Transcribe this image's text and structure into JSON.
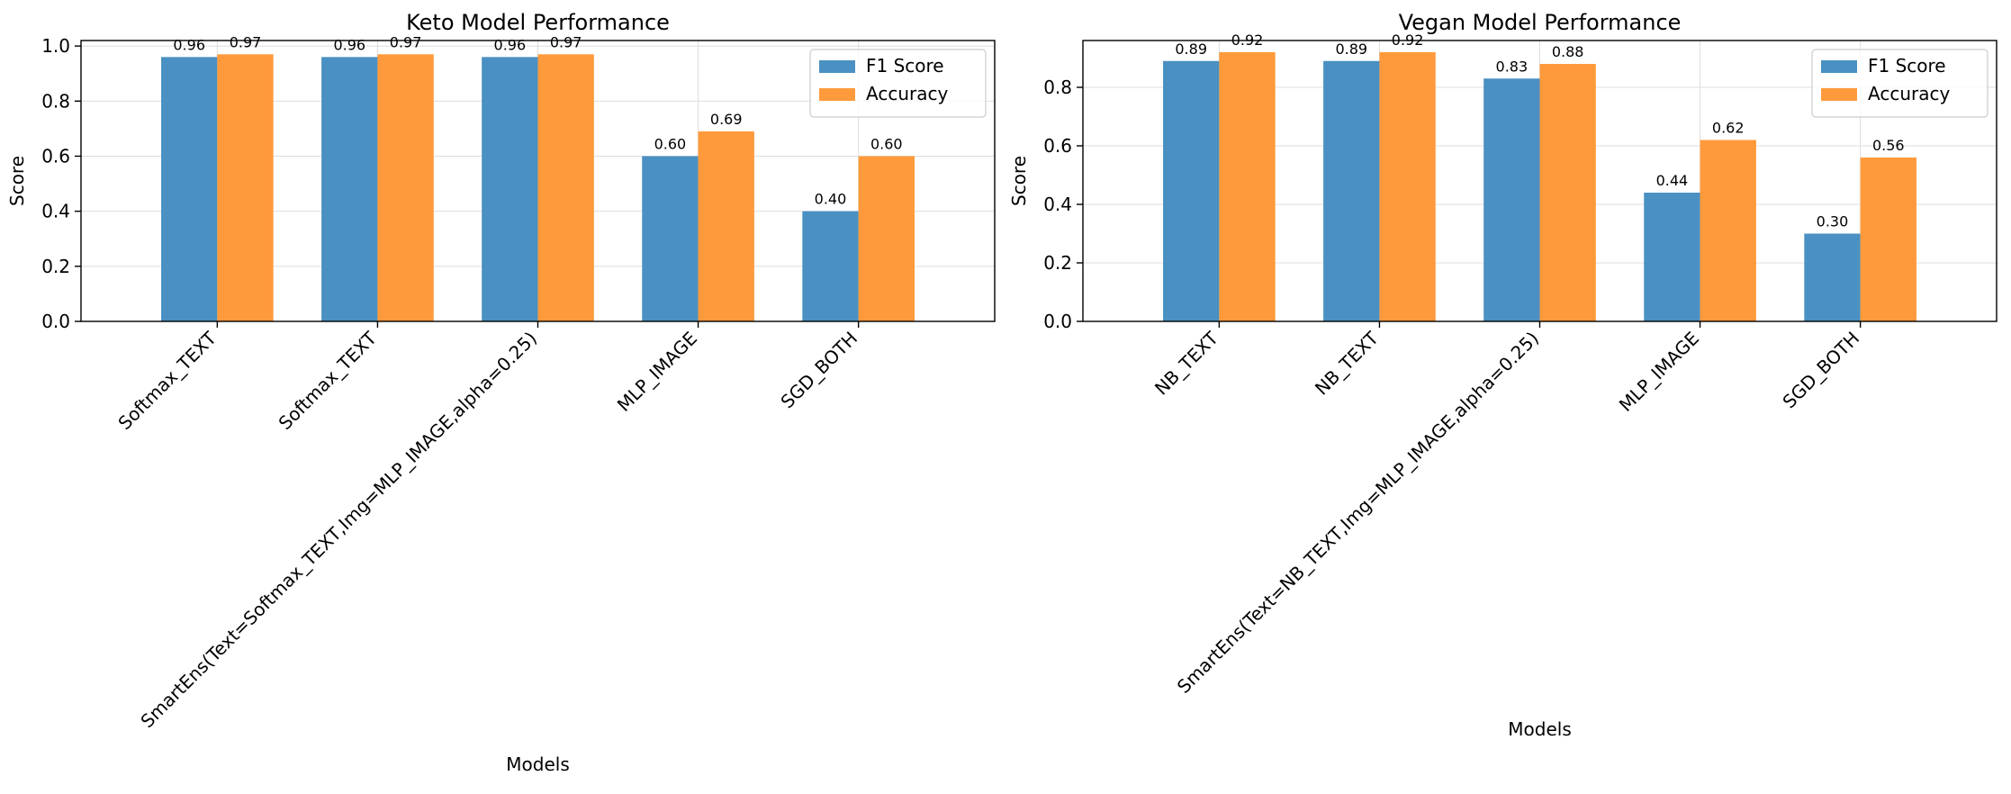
{
  "chart_data": [
    {
      "type": "bar",
      "title": "Keto Model Performance",
      "xlabel": "Models",
      "ylabel": "Score",
      "ylim": [
        0,
        1.02
      ],
      "yticks": [
        0.0,
        0.2,
        0.4,
        0.6,
        0.8,
        1.0
      ],
      "grid": true,
      "legend_position": "top-right",
      "categories": [
        "Softmax_TEXT",
        "Softmax_TEXT",
        "SmartEns(Text=Softmax_TEXT,Img=MLP_IMAGE,alpha=0.25)",
        "MLP_IMAGE",
        "SGD_BOTH"
      ],
      "series": [
        {
          "name": "F1 Score",
          "color": "#4a90c2",
          "values": [
            0.96,
            0.96,
            0.96,
            0.6,
            0.4
          ],
          "labels": [
            "0.96",
            "0.96",
            "0.96",
            "0.60",
            "0.40"
          ]
        },
        {
          "name": "Accuracy",
          "color": "#ff9a3c",
          "values": [
            0.97,
            0.97,
            0.97,
            0.69,
            0.6
          ],
          "labels": [
            "0.97",
            "0.97",
            "0.97",
            "0.69",
            "0.60"
          ]
        }
      ]
    },
    {
      "type": "bar",
      "title": "Vegan Model Performance",
      "xlabel": "Models",
      "ylabel": "Score",
      "ylim": [
        0,
        0.96
      ],
      "yticks": [
        0.0,
        0.2,
        0.4,
        0.6,
        0.8
      ],
      "grid": true,
      "legend_position": "top-right",
      "categories": [
        "NB_TEXT",
        "NB_TEXT",
        "SmartEns(Text=NB_TEXT,Img=MLP_IMAGE,alpha=0.25)",
        "MLP_IMAGE",
        "SGD_BOTH"
      ],
      "series": [
        {
          "name": "F1 Score",
          "color": "#4a90c2",
          "values": [
            0.89,
            0.89,
            0.83,
            0.44,
            0.3
          ],
          "labels": [
            "0.89",
            "0.89",
            "0.83",
            "0.44",
            "0.30"
          ]
        },
        {
          "name": "Accuracy",
          "color": "#ff9a3c",
          "values": [
            0.92,
            0.92,
            0.88,
            0.62,
            0.56
          ],
          "labels": [
            "0.92",
            "0.92",
            "0.88",
            "0.62",
            "0.56"
          ]
        }
      ]
    }
  ]
}
